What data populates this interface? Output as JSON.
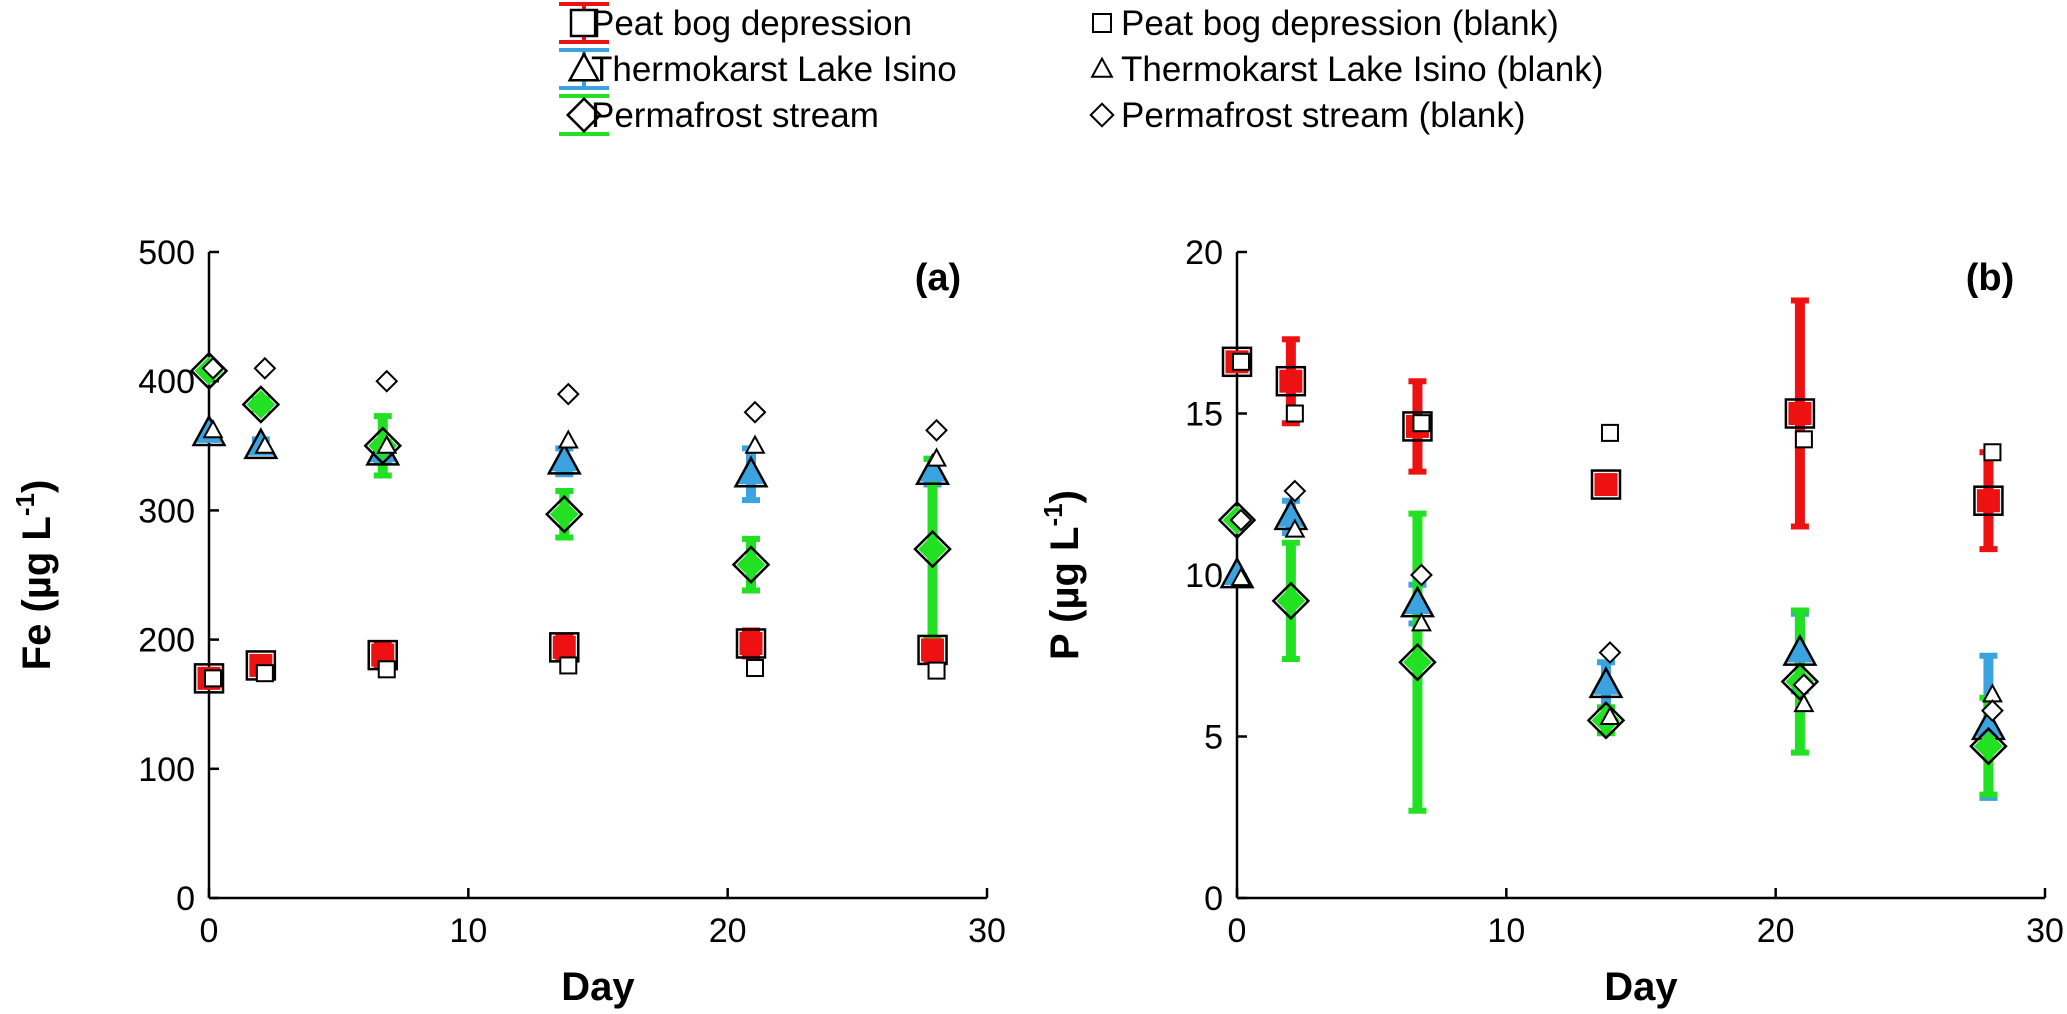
{
  "legend": [
    {
      "id": "peat",
      "label": "Peat bog depression",
      "color": "#ee1111",
      "marker": "square",
      "marker_icon": "square-icon"
    },
    {
      "id": "peat_blank",
      "label": "Peat bog depression (blank)",
      "marker": "square",
      "marker_icon": "square-small-icon"
    },
    {
      "id": "lake",
      "label": "Thermokarst Lake Isino",
      "color": "#3aa3e0",
      "marker": "triangle",
      "marker_icon": "triangle-icon"
    },
    {
      "id": "lake_blank",
      "label": "Thermokarst Lake Isino (blank)",
      "marker": "triangle",
      "marker_icon": "triangle-small-icon"
    },
    {
      "id": "stream",
      "label": "Permafrost stream",
      "color": "#22e022",
      "marker": "diamond",
      "marker_icon": "diamond-icon"
    },
    {
      "id": "stream_blank",
      "label": "Permafrost stream (blank)",
      "marker": "diamond",
      "marker_icon": "diamond-small-icon"
    }
  ],
  "chart_data": [
    {
      "type": "scatter",
      "id": "a",
      "panel_label": "(a)",
      "xlabel": "Day",
      "ylabel": "Fe (µg L-1)",
      "ylabel_main": "Fe (µg L",
      "ylabel_sup": "-1",
      "ylabel_end": ")",
      "xlim": [
        0,
        30
      ],
      "ylim": [
        0,
        500
      ],
      "xticks": [
        0,
        10,
        20,
        30
      ],
      "yticks": [
        0,
        100,
        200,
        300,
        400,
        500
      ],
      "series": [
        {
          "name": "Peat bog depression",
          "x": [
            0,
            2,
            6.7,
            13.7,
            20.9,
            27.9
          ],
          "y": [
            170,
            180,
            188,
            194,
            197,
            192
          ],
          "err": [
            0,
            6,
            9,
            8,
            10,
            8
          ]
        },
        {
          "name": "Thermokarst Lake Isino",
          "x": [
            0,
            2,
            6.7,
            13.7,
            20.9,
            27.9
          ],
          "y": [
            360,
            350,
            345,
            338,
            328,
            330
          ],
          "err": [
            0,
            5,
            8,
            10,
            20,
            10
          ]
        },
        {
          "name": "Permafrost stream",
          "x": [
            0,
            2,
            6.7,
            13.7,
            20.9,
            27.9
          ],
          "y": [
            408,
            382,
            350,
            297,
            258,
            270
          ],
          "err": [
            0,
            4,
            23,
            18,
            20,
            70
          ]
        },
        {
          "name": "Peat bog depression (blank)",
          "x": [
            0,
            2,
            6.7,
            13.7,
            20.9,
            27.9
          ],
          "y": [
            170,
            174,
            177,
            180,
            178,
            176
          ]
        },
        {
          "name": "Thermokarst Lake Isino (blank)",
          "x": [
            0,
            2,
            6.7,
            13.7,
            20.9,
            27.9
          ],
          "y": [
            362,
            350,
            350,
            354,
            350,
            340
          ]
        },
        {
          "name": "Permafrost stream (blank)",
          "x": [
            0,
            2,
            6.7,
            13.7,
            20.9,
            27.9
          ],
          "y": [
            410,
            410,
            400,
            390,
            376,
            362
          ]
        }
      ]
    },
    {
      "type": "scatter",
      "id": "b",
      "panel_label": "(b)",
      "xlabel": "Day",
      "ylabel": "P (µg L-1)",
      "ylabel_main": "P (µg L",
      "ylabel_sup": "-1",
      "ylabel_end": ")",
      "xlim": [
        0,
        30
      ],
      "ylim": [
        0,
        20
      ],
      "xticks": [
        0,
        10,
        20,
        30
      ],
      "yticks": [
        0,
        5,
        10,
        15,
        20
      ],
      "series": [
        {
          "name": "Peat bog depression",
          "x": [
            0,
            2,
            6.7,
            13.7,
            20.9,
            27.9
          ],
          "y": [
            16.6,
            16.0,
            14.6,
            12.8,
            15.0,
            12.3
          ],
          "err": [
            0,
            1.3,
            1.4,
            0.2,
            3.5,
            1.5
          ]
        },
        {
          "name": "Thermokarst Lake Isino",
          "x": [
            0,
            2,
            6.7,
            13.7,
            20.9,
            27.9
          ],
          "y": [
            10.0,
            11.8,
            9.1,
            6.6,
            7.6,
            5.3
          ],
          "err": [
            0,
            0.5,
            0.6,
            0.7,
            1.2,
            2.2
          ]
        },
        {
          "name": "Permafrost stream",
          "x": [
            0,
            2,
            6.7,
            13.7,
            20.9,
            27.9
          ],
          "y": [
            11.7,
            9.2,
            7.3,
            5.5,
            6.7,
            4.7
          ],
          "err": [
            0,
            1.8,
            4.6,
            0.4,
            2.2,
            1.5
          ]
        },
        {
          "name": "Peat bog depression (blank)",
          "x": [
            0,
            2,
            6.7,
            13.7,
            20.9,
            27.9
          ],
          "y": [
            16.6,
            15.0,
            14.7,
            14.4,
            14.2,
            13.8
          ]
        },
        {
          "name": "Thermokarst Lake Isino (blank)",
          "x": [
            0,
            2,
            6.7,
            13.7,
            20.9,
            27.9
          ],
          "y": [
            9.9,
            11.4,
            8.5,
            5.6,
            6.0,
            6.3
          ]
        },
        {
          "name": "Permafrost stream (blank)",
          "x": [
            0,
            2,
            6.7,
            13.7,
            20.9,
            27.9
          ],
          "y": [
            11.7,
            12.6,
            10.0,
            7.6,
            6.6,
            5.8
          ]
        }
      ]
    }
  ]
}
